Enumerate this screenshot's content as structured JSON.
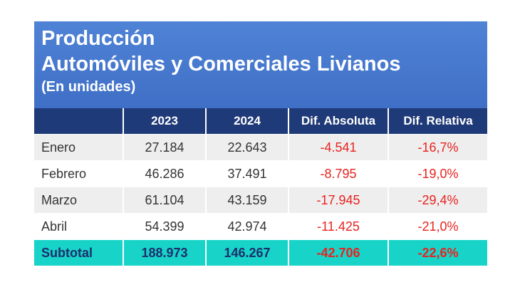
{
  "title": {
    "line1": "Producción",
    "line2": "Automóviles y Comerciales Livianos",
    "line3": "(En unidades)"
  },
  "colors": {
    "title_bg": "#4f83d6",
    "header_bg": "#1f3a78",
    "subtotal_bg": "#17d3c8",
    "negative": "#e8231f"
  },
  "chart_data": {
    "type": "table",
    "columns": [
      "",
      "2023",
      "2024",
      "Dif. Absoluta",
      "Dif. Relativa"
    ],
    "rows": [
      [
        "Enero",
        "27.184",
        "22.643",
        "-4.541",
        "-16,7%"
      ],
      [
        "Febrero",
        "46.286",
        "37.491",
        "-8.795",
        "-19,0%"
      ],
      [
        "Marzo",
        "61.104",
        "43.159",
        "-17.945",
        "-29,4%"
      ],
      [
        "Abril",
        "54.399",
        "42.974",
        "-11.425",
        "-21,0%"
      ]
    ],
    "subtotal": [
      "Subtotal",
      "188.973",
      "146.267",
      "-42.706",
      "-22,6%"
    ]
  }
}
